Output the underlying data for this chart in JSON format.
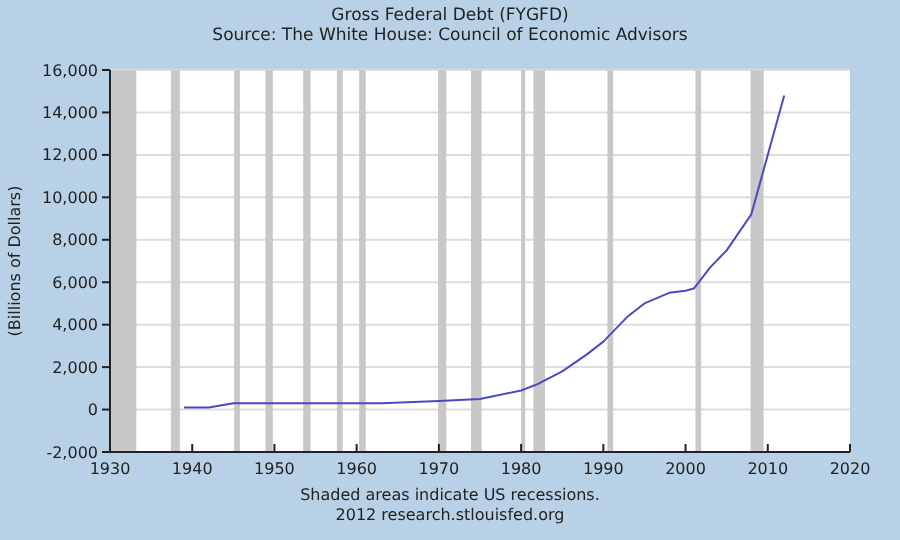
{
  "chart_data": {
    "type": "line",
    "title": "Gross Federal Debt (FYGFD)",
    "subtitle": "Source: The White House: Council of Economic Advisors",
    "ylabel": "(Billions of Dollars)",
    "annotations": [
      "Shaded areas indicate US recessions.",
      "2012 research.stlouisfed.org"
    ],
    "series": [
      {
        "color": "#4a4ac0",
        "x": [
          1939,
          1942,
          1945,
          1963,
          1970,
          1975,
          1980,
          1982,
          1985,
          1988,
          1990,
          1993,
          1995,
          1998,
          2000,
          2001,
          2003,
          2005,
          2008,
          2012
        ],
        "values": [
          100,
          100,
          300,
          300,
          400,
          500,
          900,
          1200,
          1800,
          2600,
          3200,
          4400,
          5000,
          5500,
          5600,
          5700,
          6700,
          7500,
          9200,
          14800
        ]
      }
    ],
    "xlim": [
      1930,
      2020
    ],
    "xticks": [
      1930,
      1940,
      1950,
      1960,
      1970,
      1980,
      1990,
      2000,
      2010,
      2020
    ],
    "ylim": [
      -2000,
      16000
    ],
    "yticks": [
      {
        "value": -2000,
        "label": "-2,000"
      },
      0,
      {
        "value": 2000,
        "label": "2,000"
      },
      {
        "value": 4000,
        "label": "4,000"
      },
      {
        "value": 6000,
        "label": "6,000"
      },
      {
        "value": 8000,
        "label": "8,000"
      },
      {
        "value": 10000,
        "label": "10,000"
      },
      {
        "value": 12000,
        "label": "12,000"
      },
      {
        "value": 14000,
        "label": "14,000"
      },
      {
        "value": 16000,
        "label": "16,000"
      }
    ],
    "grid": "y",
    "bands": [
      {
        "axis": "x",
        "from": 1930,
        "to": 1933.2,
        "color": "#c8c8c8"
      },
      {
        "axis": "x",
        "from": 1937.4,
        "to": 1938.5,
        "color": "#c8c8c8"
      },
      {
        "axis": "x",
        "from": 1945.1,
        "to": 1945.8,
        "color": "#c8c8c8"
      },
      {
        "axis": "x",
        "from": 1948.9,
        "to": 1949.8,
        "color": "#c8c8c8"
      },
      {
        "axis": "x",
        "from": 1953.5,
        "to": 1954.4,
        "color": "#c8c8c8"
      },
      {
        "axis": "x",
        "from": 1957.6,
        "to": 1958.3,
        "color": "#c8c8c8"
      },
      {
        "axis": "x",
        "from": 1960.3,
        "to": 1961.1,
        "color": "#c8c8c8"
      },
      {
        "axis": "x",
        "from": 1969.9,
        "to": 1970.9,
        "color": "#c8c8c8"
      },
      {
        "axis": "x",
        "from": 1973.9,
        "to": 1975.2,
        "color": "#c8c8c8"
      },
      {
        "axis": "x",
        "from": 1980.0,
        "to": 1980.5,
        "color": "#c8c8c8"
      },
      {
        "axis": "x",
        "from": 1981.5,
        "to": 1982.9,
        "color": "#c8c8c8"
      },
      {
        "axis": "x",
        "from": 1990.5,
        "to": 1991.2,
        "color": "#c8c8c8"
      },
      {
        "axis": "x",
        "from": 2001.2,
        "to": 2001.9,
        "color": "#c8c8c8"
      },
      {
        "axis": "x",
        "from": 2007.9,
        "to": 2009.5,
        "color": "#c8c8c8"
      }
    ]
  }
}
